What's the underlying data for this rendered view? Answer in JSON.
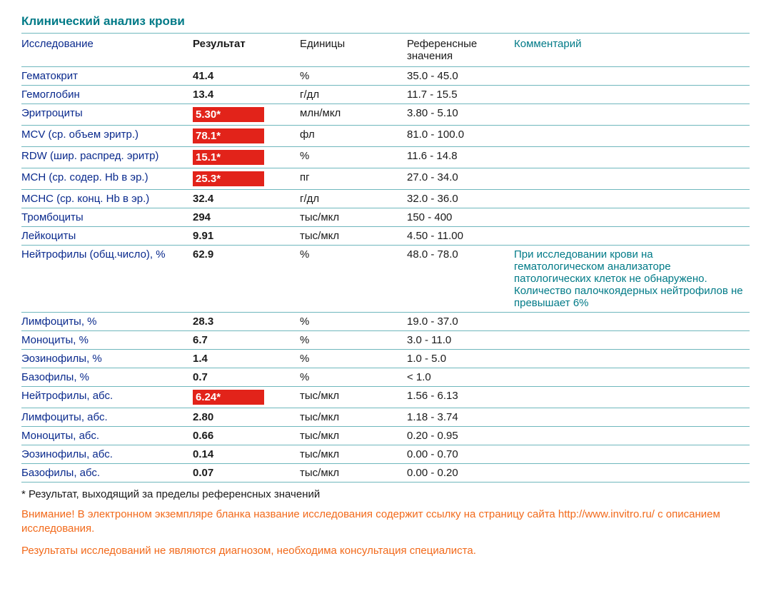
{
  "title": "Клинический анализ крови",
  "columns": {
    "name": "Исследование",
    "result": "Результат",
    "units": "Единицы",
    "ref": "Референсные значения",
    "comment": "Комментарий"
  },
  "colors": {
    "teal": "#007a87",
    "divider": "#6fb7bd",
    "link_blue": "#0a2a8d",
    "flag_bg": "#e2231a",
    "flag_text": "#ffffff",
    "warn": "#f26a1b",
    "text": "#1a1a1a",
    "background": "#ffffff"
  },
  "rows": [
    {
      "name": "Гематокрит",
      "result": "41.4",
      "flag": false,
      "units": "%",
      "ref": "35.0 - 45.0",
      "comment": ""
    },
    {
      "name": "Гемоглобин",
      "result": "13.4",
      "flag": false,
      "units": "г/дл",
      "ref": "11.7 - 15.5",
      "comment": ""
    },
    {
      "name": "Эритроциты",
      "result": "5.30*",
      "flag": true,
      "units": "млн/мкл",
      "ref": "3.80 - 5.10",
      "comment": ""
    },
    {
      "name": "MCV (ср. объем эритр.)",
      "result": "78.1*",
      "flag": true,
      "units": "фл",
      "ref": "81.0 - 100.0",
      "comment": ""
    },
    {
      "name": "RDW (шир. распред. эритр)",
      "result": "15.1*",
      "flag": true,
      "units": "%",
      "ref": "11.6 - 14.8",
      "comment": ""
    },
    {
      "name": "MCH (ср. содер. Hb в эр.)",
      "result": "25.3*",
      "flag": true,
      "units": "пг",
      "ref": "27.0 - 34.0",
      "comment": ""
    },
    {
      "name": "MCHC (ср. конц. Hb в эр.)",
      "result": "32.4",
      "flag": false,
      "units": "г/дл",
      "ref": "32.0 - 36.0",
      "comment": ""
    },
    {
      "name": "Тромбоциты",
      "result": "294",
      "flag": false,
      "units": "тыс/мкл",
      "ref": "150 - 400",
      "comment": ""
    },
    {
      "name": "Лейкоциты",
      "result": "9.91",
      "flag": false,
      "units": "тыс/мкл",
      "ref": "4.50 - 11.00",
      "comment": ""
    },
    {
      "name": "Нейтрофилы (общ.число), %",
      "result": "62.9",
      "flag": false,
      "units": "%",
      "ref": "48.0 - 78.0",
      "comment": "При исследовании крови на гематологическом анализаторе патологических клеток не обнаружено. Количество палочкоядерных нейтрофилов не превышает 6%"
    },
    {
      "name": "Лимфоциты, %",
      "result": "28.3",
      "flag": false,
      "units": "%",
      "ref": "19.0 - 37.0",
      "comment": ""
    },
    {
      "name": "Моноциты, %",
      "result": "6.7",
      "flag": false,
      "units": "%",
      "ref": "3.0 - 11.0",
      "comment": ""
    },
    {
      "name": "Эозинофилы, %",
      "result": "1.4",
      "flag": false,
      "units": "%",
      "ref": "1.0 - 5.0",
      "comment": ""
    },
    {
      "name": "Базофилы, %",
      "result": "0.7",
      "flag": false,
      "units": "%",
      "ref": "< 1.0",
      "comment": ""
    },
    {
      "name": "Нейтрофилы, абс.",
      "result": "6.24*",
      "flag": true,
      "units": "тыс/мкл",
      "ref": "1.56 - 6.13",
      "comment": ""
    },
    {
      "name": "Лимфоциты, абс.",
      "result": "2.80",
      "flag": false,
      "units": "тыс/мкл",
      "ref": "1.18 - 3.74",
      "comment": ""
    },
    {
      "name": "Моноциты, абс.",
      "result": "0.66",
      "flag": false,
      "units": "тыс/мкл",
      "ref": "0.20 - 0.95",
      "comment": ""
    },
    {
      "name": "Эозинофилы, абс.",
      "result": "0.14",
      "flag": false,
      "units": "тыс/мкл",
      "ref": "0.00 - 0.70",
      "comment": ""
    },
    {
      "name": "Базофилы, абс.",
      "result": "0.07",
      "flag": false,
      "units": "тыс/мкл",
      "ref": "0.00 - 0.20",
      "comment": ""
    }
  ],
  "footnote": "* Результат, выходящий за пределы референсных значений",
  "warning1": "Внимание! В электронном экземпляре бланка название исследования содержит ссылку на страницу сайта http://www.invitro.ru/ с описанием исследования.",
  "warning2": "Результаты исследований не являются диагнозом, необходима консультация специалиста."
}
